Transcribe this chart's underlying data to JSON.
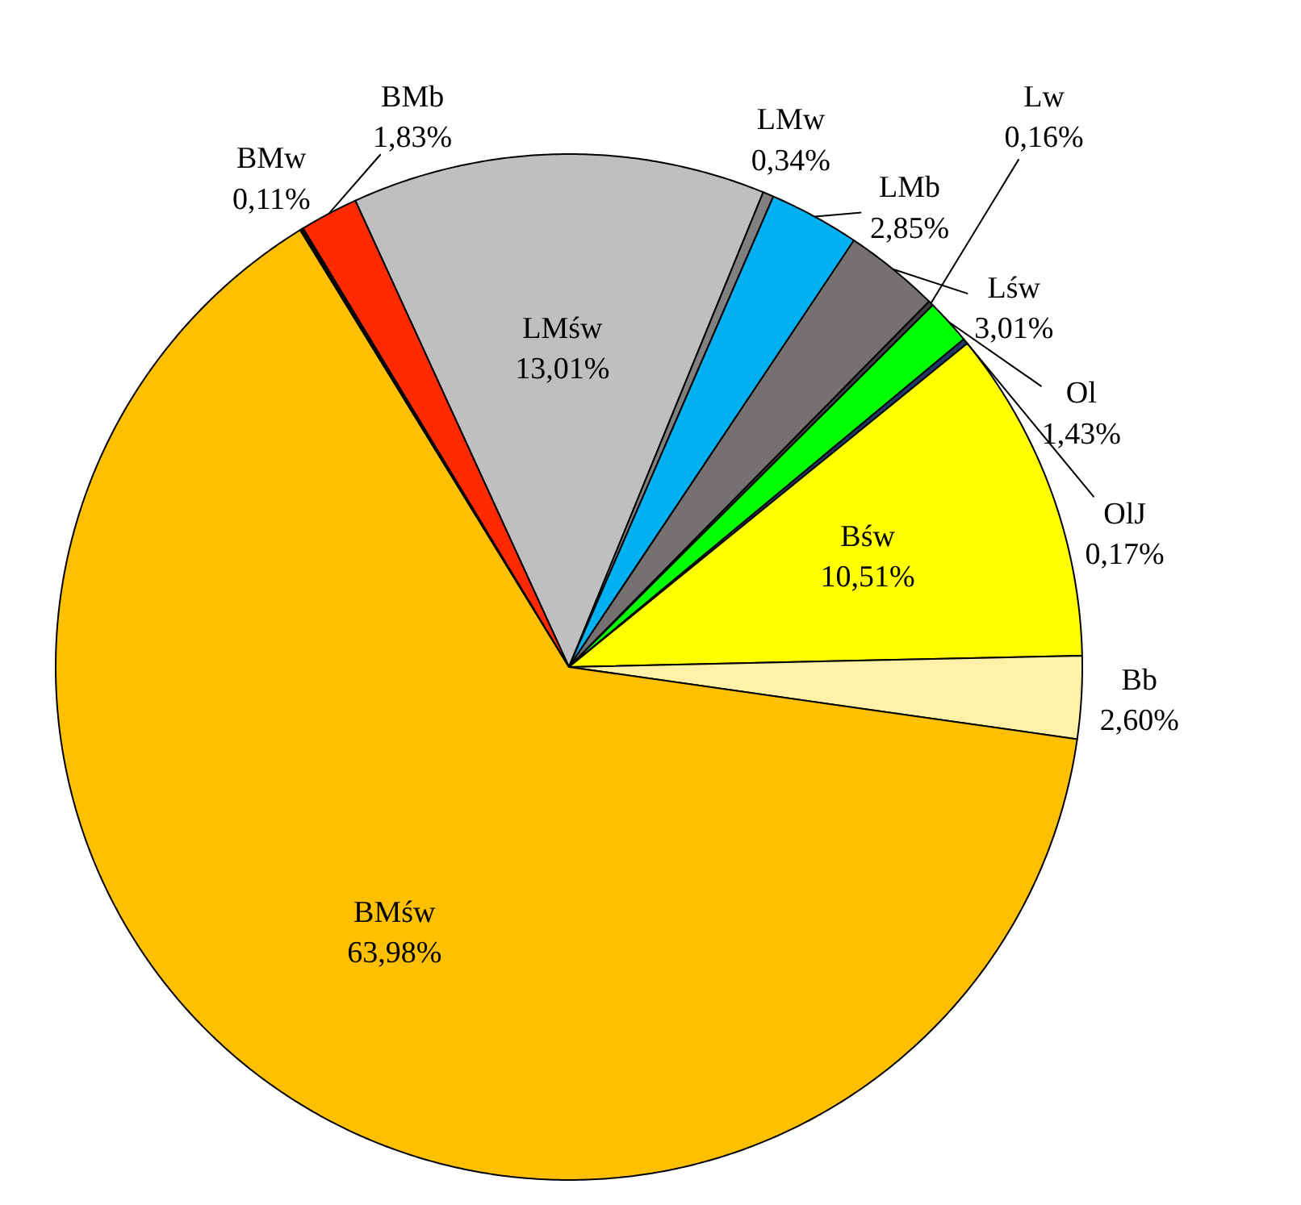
{
  "chart_data": {
    "type": "pie",
    "categories": [
      "LMśw",
      "LMw",
      "LMb",
      "Lśw",
      "Lw",
      "Ol",
      "OlJ",
      "Bśw",
      "Bb",
      "BMśw",
      "BMw",
      "BMb"
    ],
    "values": [
      13.01,
      0.34,
      2.85,
      3.01,
      0.16,
      1.43,
      0.17,
      10.51,
      2.6,
      63.98,
      0.11,
      1.83
    ],
    "value_labels": [
      "13,01%",
      "0,34%",
      "2,85%",
      "3,01%",
      "0,16%",
      "1,43%",
      "0,17%",
      "10,51%",
      "2,60%",
      "63,98%",
      "0,11%",
      "1,83%"
    ],
    "colors": [
      "#bfbfbf",
      "#808080",
      "#00b0f0",
      "#767171",
      "#404040",
      "#00ff00",
      "#203864",
      "#ffff00",
      "#fff2a8",
      "#ffc000",
      "#000000",
      "#ff2a00"
    ]
  }
}
